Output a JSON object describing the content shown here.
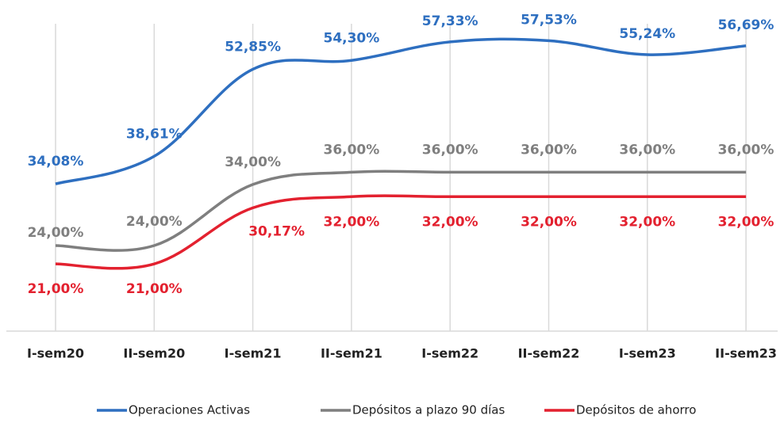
{
  "chart_data": {
    "type": "line",
    "categories": [
      "I-sem20",
      "II-sem20",
      "I-sem21",
      "II-sem21",
      "I-sem22",
      "II-sem22",
      "I-sem23",
      "II-sem23"
    ],
    "series": [
      {
        "name": "Operaciones Activas",
        "color": "#2e6fc0",
        "values": [
          34.08,
          38.61,
          52.85,
          54.3,
          57.33,
          57.53,
          55.24,
          56.69
        ],
        "value_labels": [
          "34,08%",
          "38,61%",
          "52,85%",
          "54,30%",
          "57,33%",
          "57,53%",
          "55,24%",
          "56,69%"
        ]
      },
      {
        "name": "Depósitos a plazo 90 días",
        "color": "#7f7f7f",
        "values": [
          24.0,
          24.0,
          34.0,
          36.0,
          36.0,
          36.0,
          36.0,
          36.0
        ],
        "value_labels": [
          "24,00%",
          "24,00%",
          "34,00%",
          "36,00%",
          "36,00%",
          "36,00%",
          "36,00%",
          "36,00%"
        ]
      },
      {
        "name": "Depósitos de ahorro",
        "color": "#e3212f",
        "values": [
          21.0,
          21.0,
          30.17,
          32.0,
          32.0,
          32.0,
          32.0,
          32.0
        ],
        "value_labels": [
          "21,00%",
          "21,00%",
          "30,17%",
          "32,00%",
          "32,00%",
          "32,00%",
          "32,00%",
          "32,00%"
        ]
      }
    ],
    "ylim": [
      10,
      59
    ],
    "grid": true
  }
}
